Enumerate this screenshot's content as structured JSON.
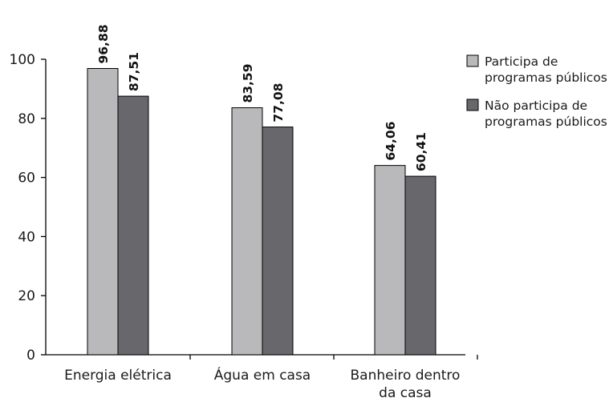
{
  "chart_data": {
    "type": "bar",
    "title": "",
    "xlabel": "",
    "ylabel": "",
    "ylim": [
      0,
      100
    ],
    "yticks": [
      0,
      20,
      40,
      60,
      80,
      100
    ],
    "categories": [
      [
        "Energia elétrica"
      ],
      [
        "Água em casa"
      ],
      [
        "Banheiro dentro",
        "da casa"
      ]
    ],
    "series": [
      {
        "name_lines": [
          "Participa de",
          "programas públicos"
        ],
        "color": "#b9b9bb",
        "values": [
          96.88,
          83.59,
          64.06
        ],
        "labels": [
          "96,88",
          "83,59",
          "64,06"
        ]
      },
      {
        "name_lines": [
          "Não participa de",
          "programas públicos"
        ],
        "color": "#68686c",
        "values": [
          87.51,
          77.08,
          60.41
        ],
        "labels": [
          "87,51",
          "77,08",
          "60,41"
        ]
      }
    ],
    "grid": false,
    "legend_position": "right"
  }
}
